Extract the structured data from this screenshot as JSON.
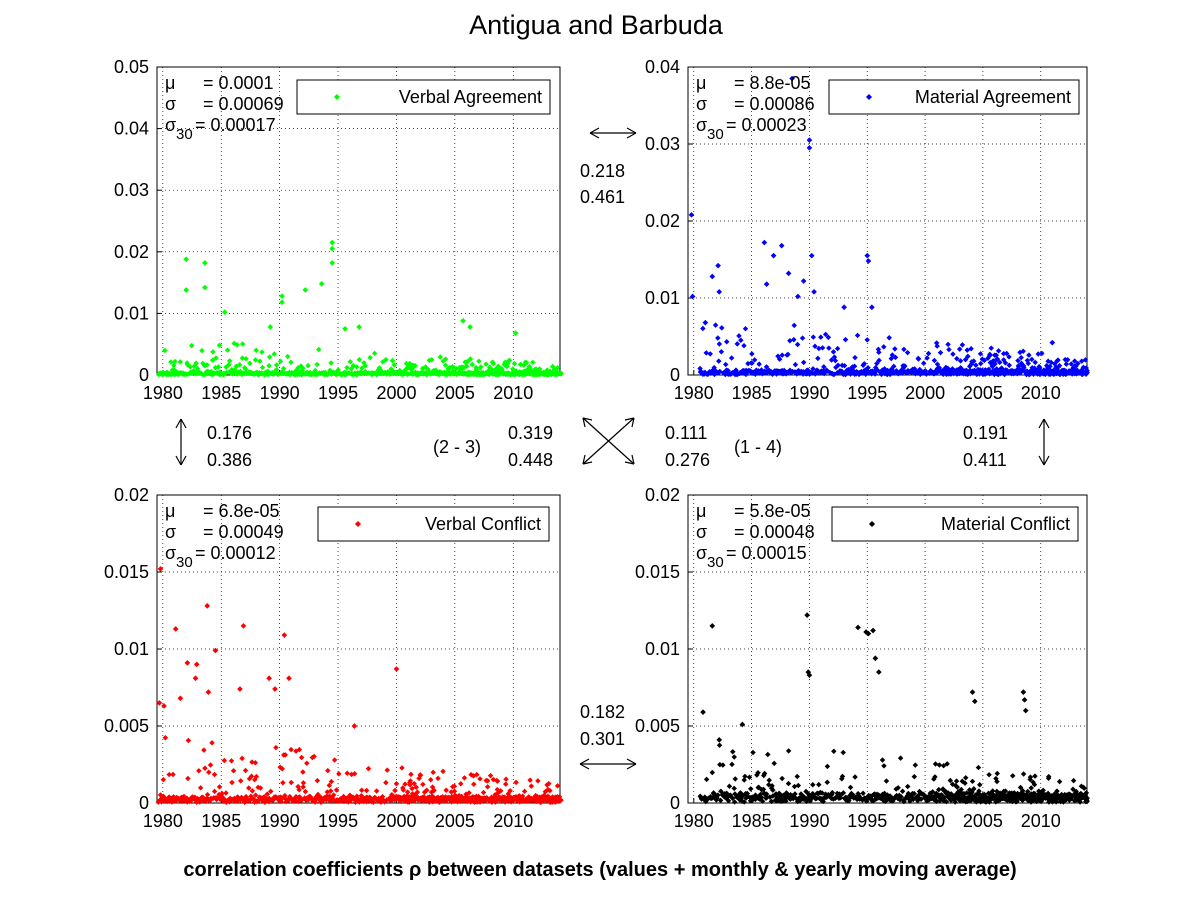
{
  "title": "Antigua and Barbuda",
  "footer": "correlation coefficients ρ between datasets (values + monthly & yearly moving average)",
  "x_ticks": [
    "1980",
    "1985",
    "1990",
    "1995",
    "2000",
    "2005",
    "2010"
  ],
  "chart_data": [
    {
      "type": "scatter",
      "legend": "Verbal Agreement",
      "color": "#00ff00",
      "xlim": [
        1979.5,
        2014
      ],
      "ylim": [
        0,
        0.05
      ],
      "y_ticks": [
        "0",
        "0.01",
        "0.02",
        "0.03",
        "0.04",
        "0.05"
      ],
      "grid": true,
      "legend_position": "top-right",
      "stats": {
        "mu": "= 0.0001",
        "sigma": "= 0.00069",
        "sigma30": "= 0.00017"
      },
      "highlights": [
        {
          "x": 1982.0,
          "y": 0.0188
        },
        {
          "x": 1982.0,
          "y": 0.0138
        },
        {
          "x": 1983.6,
          "y": 0.0182
        },
        {
          "x": 1983.6,
          "y": 0.0142
        },
        {
          "x": 1985.3,
          "y": 0.0102
        },
        {
          "x": 1989.2,
          "y": 0.0078
        },
        {
          "x": 1990.2,
          "y": 0.0128
        },
        {
          "x": 1990.2,
          "y": 0.0118
        },
        {
          "x": 1992.2,
          "y": 0.0138
        },
        {
          "x": 1993.6,
          "y": 0.0148
        },
        {
          "x": 1994.5,
          "y": 0.0215
        },
        {
          "x": 1994.5,
          "y": 0.0205
        },
        {
          "x": 1994.5,
          "y": 0.0182
        },
        {
          "x": 1995.6,
          "y": 0.0075
        },
        {
          "x": 1996.8,
          "y": 0.0078
        },
        {
          "x": 2005.7,
          "y": 0.0088
        },
        {
          "x": 2006.3,
          "y": 0.0078
        },
        {
          "x": 2010.2,
          "y": 0.0068
        }
      ],
      "points": {
        "min_x": 1979.6,
        "max_x": 2014,
        "seed": 11,
        "decay": 0.32,
        "early_level": 0.0042,
        "late_level": 0.0012,
        "floor": 0.0002
      }
    },
    {
      "type": "scatter",
      "legend": "Material Agreement",
      "color": "#0000ff",
      "xlim": [
        1979.5,
        2014
      ],
      "ylim": [
        0,
        0.04
      ],
      "y_ticks": [
        "0",
        "0.01",
        "0.02",
        "0.03",
        "0.04"
      ],
      "grid": true,
      "legend_position": "top-right",
      "stats": {
        "mu": "= 8.8e-05",
        "sigma": "= 0.00086",
        "sigma30": "= 0.00023"
      },
      "highlights": [
        {
          "x": 1979.8,
          "y": 0.0208
        },
        {
          "x": 1979.9,
          "y": 0.0102
        },
        {
          "x": 1981.0,
          "y": 0.0068
        },
        {
          "x": 1981.6,
          "y": 0.0128
        },
        {
          "x": 1982.1,
          "y": 0.0142
        },
        {
          "x": 1982.2,
          "y": 0.0108
        },
        {
          "x": 1986.1,
          "y": 0.0172
        },
        {
          "x": 1986.3,
          "y": 0.0118
        },
        {
          "x": 1986.9,
          "y": 0.0155
        },
        {
          "x": 1987.6,
          "y": 0.0168
        },
        {
          "x": 1988.2,
          "y": 0.0132
        },
        {
          "x": 1989.0,
          "y": 0.0102
        },
        {
          "x": 1989.5,
          "y": 0.0122
        },
        {
          "x": 1990.0,
          "y": 0.0305
        },
        {
          "x": 1990.0,
          "y": 0.0295
        },
        {
          "x": 1990.2,
          "y": 0.0155
        },
        {
          "x": 1990.4,
          "y": 0.0108
        },
        {
          "x": 1993.0,
          "y": 0.0088
        },
        {
          "x": 1995.0,
          "y": 0.0155
        },
        {
          "x": 1995.1,
          "y": 0.0148
        },
        {
          "x": 1995.4,
          "y": 0.0088
        },
        {
          "x": 2011.0,
          "y": 0.0042
        },
        {
          "x": 1988.5,
          "y": 0.0385
        }
      ],
      "points": {
        "min_x": 1980.5,
        "max_x": 2014,
        "seed": 23,
        "decay": 0.38,
        "early_level": 0.0055,
        "late_level": 0.0013,
        "floor": 0.0003
      }
    },
    {
      "type": "scatter",
      "legend": "Verbal Conflict",
      "color": "#ff0000",
      "xlim": [
        1979.5,
        2014
      ],
      "ylim": [
        0,
        0.02
      ],
      "y_ticks": [
        "0",
        "0.005",
        "0.01",
        "0.015",
        "0.02"
      ],
      "grid": true,
      "legend_position": "top-right",
      "stats": {
        "mu": "= 6.8e-05",
        "sigma": "= 0.00049",
        "sigma30": "= 0.00012"
      },
      "highlights": [
        {
          "x": 1979.8,
          "y": 0.0152
        },
        {
          "x": 1979.7,
          "y": 0.0065
        },
        {
          "x": 1980.1,
          "y": 0.0063
        },
        {
          "x": 1981.1,
          "y": 0.0113
        },
        {
          "x": 1981.5,
          "y": 0.0068
        },
        {
          "x": 1982.1,
          "y": 0.0091
        },
        {
          "x": 1982.9,
          "y": 0.009
        },
        {
          "x": 1982.8,
          "y": 0.0081
        },
        {
          "x": 1983.8,
          "y": 0.0128
        },
        {
          "x": 1984.5,
          "y": 0.0099
        },
        {
          "x": 1983.9,
          "y": 0.0072
        },
        {
          "x": 1986.9,
          "y": 0.0115
        },
        {
          "x": 1986.6,
          "y": 0.0074
        },
        {
          "x": 1989.1,
          "y": 0.0081
        },
        {
          "x": 1989.6,
          "y": 0.0074
        },
        {
          "x": 1990.4,
          "y": 0.0109
        },
        {
          "x": 1990.8,
          "y": 0.0081
        },
        {
          "x": 2000.0,
          "y": 0.0087
        },
        {
          "x": 1996.4,
          "y": 0.005
        }
      ],
      "points": {
        "min_x": 1979.6,
        "max_x": 2014,
        "seed": 37,
        "decay": 0.3,
        "early_level": 0.0032,
        "late_level": 0.0008,
        "floor": 0.0002
      }
    },
    {
      "type": "scatter",
      "legend": "Material Conflict",
      "color": "#000000",
      "xlim": [
        1979.5,
        2014
      ],
      "ylim": [
        0,
        0.02
      ],
      "y_ticks": [
        "0",
        "0.005",
        "0.01",
        "0.015",
        "0.02"
      ],
      "grid": true,
      "legend_position": "top-right",
      "stats": {
        "mu": "= 5.8e-05",
        "sigma": "= 0.00048",
        "sigma30": "= 0.00015"
      },
      "highlights": [
        {
          "x": 1980.8,
          "y": 0.0059
        },
        {
          "x": 1981.6,
          "y": 0.0115
        },
        {
          "x": 1982.2,
          "y": 0.0041
        },
        {
          "x": 1984.2,
          "y": 0.0051
        },
        {
          "x": 1989.8,
          "y": 0.0122
        },
        {
          "x": 1989.9,
          "y": 0.0085
        },
        {
          "x": 1990.0,
          "y": 0.0083
        },
        {
          "x": 1994.2,
          "y": 0.0114
        },
        {
          "x": 1994.9,
          "y": 0.0111
        },
        {
          "x": 1995.1,
          "y": 0.011
        },
        {
          "x": 1995.5,
          "y": 0.0112
        },
        {
          "x": 1995.7,
          "y": 0.0094
        },
        {
          "x": 1996.0,
          "y": 0.0085
        },
        {
          "x": 2004.1,
          "y": 0.0072
        },
        {
          "x": 2004.3,
          "y": 0.0066
        },
        {
          "x": 2008.5,
          "y": 0.0072
        },
        {
          "x": 2008.6,
          "y": 0.0067
        },
        {
          "x": 2008.7,
          "y": 0.006
        }
      ],
      "points": {
        "min_x": 1980.5,
        "max_x": 2014,
        "seed": 53,
        "decay": 0.25,
        "early_level": 0.003,
        "late_level": 0.001,
        "floor": 0.0003
      }
    }
  ],
  "correlations": {
    "top": {
      "monthly": "0.218",
      "yearly": "0.461"
    },
    "bottom": {
      "monthly": "0.182",
      "yearly": "0.301"
    },
    "left": {
      "monthly": "0.176",
      "yearly": "0.386"
    },
    "right": {
      "monthly": "0.191",
      "yearly": "0.411"
    },
    "diag_2_3": {
      "monthly": "0.319",
      "yearly": "0.448",
      "label": "(2 - 3)"
    },
    "diag_1_4": {
      "monthly": "0.111",
      "yearly": "0.276",
      "label": "(1 - 4)"
    }
  }
}
